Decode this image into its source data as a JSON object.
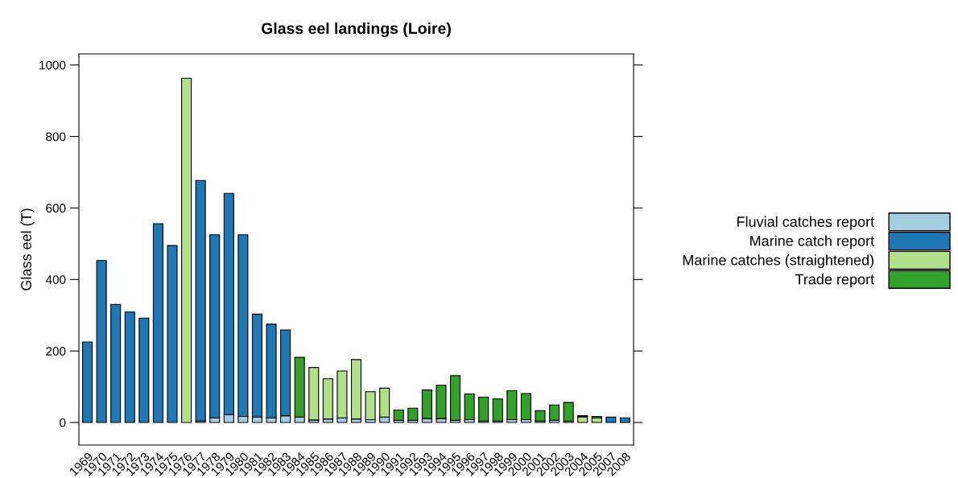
{
  "chart_data": {
    "type": "bar",
    "title": "Glass eel landings (Loire)",
    "ylabel": "Glass eel (T)",
    "categories": [
      "1969",
      "1970",
      "1971",
      "1972",
      "1973",
      "1974",
      "1975",
      "1976",
      "1977",
      "1978",
      "1979",
      "1980",
      "1981",
      "1982",
      "1983",
      "1984",
      "1985",
      "1986",
      "1987",
      "1988",
      "1989",
      "1990",
      "1991",
      "1992",
      "1993",
      "1994",
      "1995",
      "1996",
      "1997",
      "1998",
      "1999",
      "2000",
      "2001",
      "2002",
      "2003",
      "2004",
      "2005",
      "2007",
      "2008"
    ],
    "stacked": true,
    "series": [
      {
        "name": "Fluvial catches report",
        "color": "#a6cee3",
        "values": [
          null,
          null,
          null,
          null,
          null,
          null,
          null,
          null,
          4,
          13,
          22,
          17,
          15,
          13,
          19,
          15,
          7,
          10,
          13,
          10,
          8,
          15,
          6,
          6,
          11,
          11,
          6,
          8,
          4,
          4,
          8,
          8,
          4,
          6,
          4,
          null,
          null,
          null,
          null
        ]
      },
      {
        "name": "Marine catch report",
        "color": "#1f78b4",
        "values": [
          225,
          453,
          330,
          309,
          292,
          556,
          495,
          null,
          673,
          512,
          619,
          508,
          288,
          262,
          240,
          null,
          null,
          null,
          null,
          null,
          null,
          null,
          null,
          null,
          null,
          null,
          null,
          null,
          null,
          null,
          null,
          null,
          null,
          null,
          null,
          null,
          null,
          15,
          13
        ]
      },
      {
        "name": "Marine catches (straightened)",
        "color": "#b2df8a",
        "values": [
          null,
          null,
          null,
          null,
          null,
          null,
          null,
          963,
          null,
          null,
          null,
          null,
          null,
          null,
          null,
          null,
          147,
          112,
          131,
          166,
          78,
          81,
          null,
          null,
          null,
          null,
          null,
          null,
          null,
          null,
          null,
          null,
          null,
          null,
          null,
          16,
          13,
          null,
          null
        ]
      },
      {
        "name": "Trade report",
        "color": "#33a02c",
        "values": [
          null,
          null,
          null,
          null,
          null,
          null,
          null,
          null,
          null,
          null,
          null,
          null,
          null,
          null,
          null,
          167,
          null,
          null,
          null,
          null,
          null,
          null,
          29,
          34,
          80,
          93,
          125,
          72,
          67,
          62,
          81,
          73,
          29,
          43,
          52,
          3,
          4,
          null,
          null
        ]
      }
    ],
    "ylim": [
      -63,
      1031
    ],
    "yticks": [
      0,
      200,
      400,
      600,
      800,
      1000
    ],
    "grid": false,
    "legend": "right"
  }
}
